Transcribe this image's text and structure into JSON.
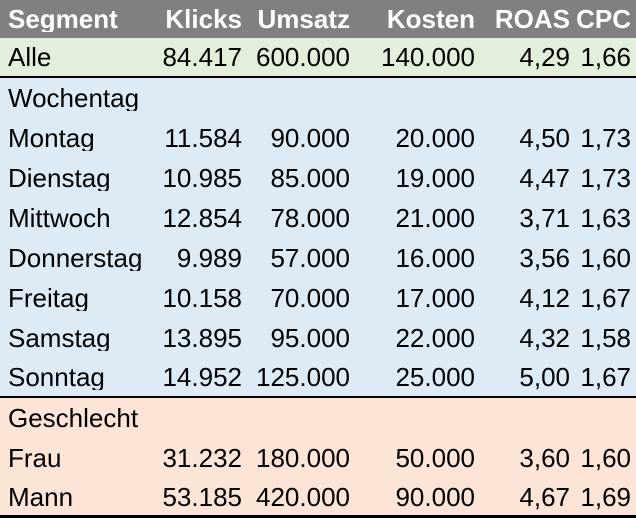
{
  "colors": {
    "header_bg": "#808080",
    "header_text": "#FFFFFF",
    "total_bg": "#E2EFDA",
    "weekday_bg": "#DDEBF7",
    "gender_bg": "#FCE4D6",
    "text": "#000000",
    "divider": "#000000"
  },
  "table": {
    "columns": [
      "Segment",
      "Klicks",
      "Umsatz",
      "Kosten",
      "ROAS",
      "CPC"
    ],
    "rows": [
      {
        "kind": "data",
        "group": "total",
        "divider": "thin",
        "cells": [
          "Alle",
          "84.417",
          "600.000",
          "140.000",
          "4,29",
          "1,66"
        ]
      },
      {
        "kind": "section",
        "group": "weekday",
        "divider": "",
        "cells": [
          "Wochentag",
          "",
          "",
          "",
          "",
          ""
        ]
      },
      {
        "kind": "data",
        "group": "weekday",
        "divider": "",
        "cells": [
          "Montag",
          "11.584",
          "90.000",
          "20.000",
          "4,50",
          "1,73"
        ]
      },
      {
        "kind": "data",
        "group": "weekday",
        "divider": "",
        "cells": [
          "Dienstag",
          "10.985",
          "85.000",
          "19.000",
          "4,47",
          "1,73"
        ]
      },
      {
        "kind": "data",
        "group": "weekday",
        "divider": "",
        "cells": [
          "Mittwoch",
          "12.854",
          "78.000",
          "21.000",
          "3,71",
          "1,63"
        ]
      },
      {
        "kind": "data",
        "group": "weekday",
        "divider": "",
        "cells": [
          "Donnerstag",
          "9.989",
          "57.000",
          "16.000",
          "3,56",
          "1,60"
        ]
      },
      {
        "kind": "data",
        "group": "weekday",
        "divider": "",
        "cells": [
          "Freitag",
          "10.158",
          "70.000",
          "17.000",
          "4,12",
          "1,67"
        ]
      },
      {
        "kind": "data",
        "group": "weekday",
        "divider": "",
        "cells": [
          "Samstag",
          "13.895",
          "95.000",
          "22.000",
          "4,32",
          "1,58"
        ]
      },
      {
        "kind": "data",
        "group": "weekday",
        "divider": "thin",
        "cells": [
          "Sonntag",
          "14.952",
          "125.000",
          "25.000",
          "5,00",
          "1,67"
        ]
      },
      {
        "kind": "section",
        "group": "gender",
        "divider": "",
        "cells": [
          "Geschlecht",
          "",
          "",
          "",
          "",
          ""
        ]
      },
      {
        "kind": "data",
        "group": "gender",
        "divider": "",
        "cells": [
          "Frau",
          "31.232",
          "180.000",
          "50.000",
          "3,60",
          "1,60"
        ]
      },
      {
        "kind": "data",
        "group": "gender",
        "divider": "thick",
        "cells": [
          "Mann",
          "53.185",
          "420.000",
          "90.000",
          "4,67",
          "1,69"
        ]
      }
    ]
  },
  "chart_data": {
    "type": "table",
    "columns": [
      "Segment",
      "Klicks",
      "Umsatz",
      "Kosten",
      "ROAS",
      "CPC"
    ],
    "number_format": "de-DE",
    "sections": [
      {
        "name": "",
        "rows": [
          {
            "segment": "Alle",
            "klicks": 84417,
            "umsatz": 600000,
            "kosten": 140000,
            "roas": 4.29,
            "cpc": 1.66
          }
        ]
      },
      {
        "name": "Wochentag",
        "rows": [
          {
            "segment": "Montag",
            "klicks": 11584,
            "umsatz": 90000,
            "kosten": 20000,
            "roas": 4.5,
            "cpc": 1.73
          },
          {
            "segment": "Dienstag",
            "klicks": 10985,
            "umsatz": 85000,
            "kosten": 19000,
            "roas": 4.47,
            "cpc": 1.73
          },
          {
            "segment": "Mittwoch",
            "klicks": 12854,
            "umsatz": 78000,
            "kosten": 21000,
            "roas": 3.71,
            "cpc": 1.63
          },
          {
            "segment": "Donnerstag",
            "klicks": 9989,
            "umsatz": 57000,
            "kosten": 16000,
            "roas": 3.56,
            "cpc": 1.6
          },
          {
            "segment": "Freitag",
            "klicks": 10158,
            "umsatz": 70000,
            "kosten": 17000,
            "roas": 4.12,
            "cpc": 1.67
          },
          {
            "segment": "Samstag",
            "klicks": 13895,
            "umsatz": 95000,
            "kosten": 22000,
            "roas": 4.32,
            "cpc": 1.58
          },
          {
            "segment": "Sonntag",
            "klicks": 14952,
            "umsatz": 125000,
            "kosten": 25000,
            "roas": 5.0,
            "cpc": 1.67
          }
        ]
      },
      {
        "name": "Geschlecht",
        "rows": [
          {
            "segment": "Frau",
            "klicks": 31232,
            "umsatz": 180000,
            "kosten": 50000,
            "roas": 3.6,
            "cpc": 1.6
          },
          {
            "segment": "Mann",
            "klicks": 53185,
            "umsatz": 420000,
            "kosten": 90000,
            "roas": 4.67,
            "cpc": 1.69
          }
        ]
      }
    ]
  }
}
